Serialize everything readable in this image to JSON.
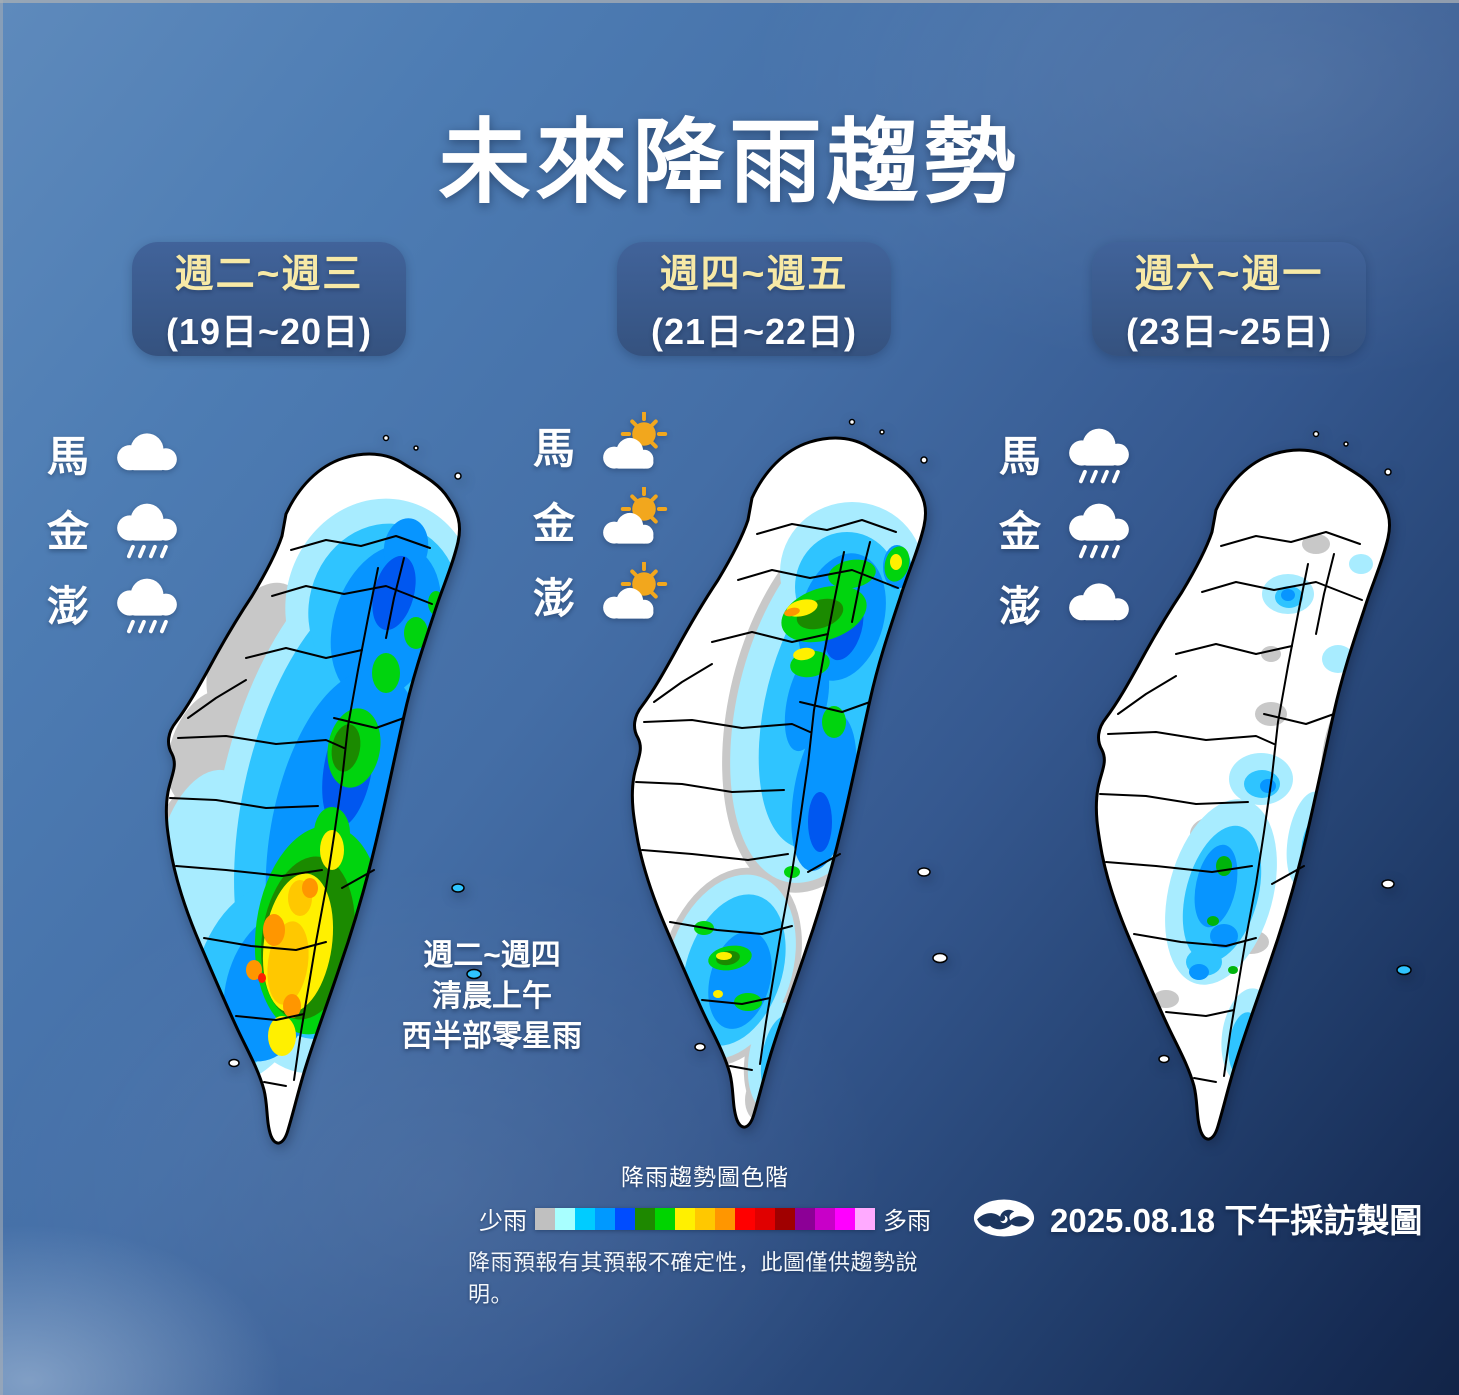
{
  "title": "未來降雨趨勢",
  "panels": [
    {
      "period_label": "週二~週三",
      "date_label": "(19日~20日)",
      "islands": [
        {
          "name": "馬",
          "icon": "cloudy"
        },
        {
          "name": "金",
          "icon": "rain"
        },
        {
          "name": "澎",
          "icon": "rain"
        }
      ]
    },
    {
      "period_label": "週四~週五",
      "date_label": "(21日~22日)",
      "islands": [
        {
          "name": "馬",
          "icon": "partly-sunny"
        },
        {
          "name": "金",
          "icon": "partly-sunny"
        },
        {
          "name": "澎",
          "icon": "partly-sunny"
        }
      ]
    },
    {
      "period_label": "週六~週一",
      "date_label": "(23日~25日)",
      "islands": [
        {
          "name": "馬",
          "icon": "rain"
        },
        {
          "name": "金",
          "icon": "rain"
        },
        {
          "name": "澎",
          "icon": "cloudy"
        }
      ]
    }
  ],
  "annotation": {
    "line1": "週二~週四",
    "line2": "清晨上午",
    "line3": "西半部零星雨"
  },
  "legend": {
    "title": "降雨趨勢圖色階",
    "less_label": "少雨",
    "more_label": "多雨",
    "colors": [
      "#c0c0c0",
      "#a8ffff",
      "#00ccff",
      "#0099ff",
      "#004cff",
      "#1e8800",
      "#00d400",
      "#fff000",
      "#ffc800",
      "#ff9600",
      "#ff0000",
      "#e00000",
      "#a00000",
      "#8c0096",
      "#c800c8",
      "#ff00ff",
      "#ffaaff"
    ],
    "note": "降雨預報有其預報不確定性，此圖僅供趨勢說明。"
  },
  "footer": {
    "logo": "cwa-logo",
    "date_text": "2025.08.18 下午採訪製圖"
  },
  "colors": {
    "badge_bg": "#3a5a8c",
    "badge_period_text": "#f7e9a6",
    "sun": "#f2a71d",
    "background_top": "#4d7cb3",
    "background_bottom": "#122447"
  }
}
